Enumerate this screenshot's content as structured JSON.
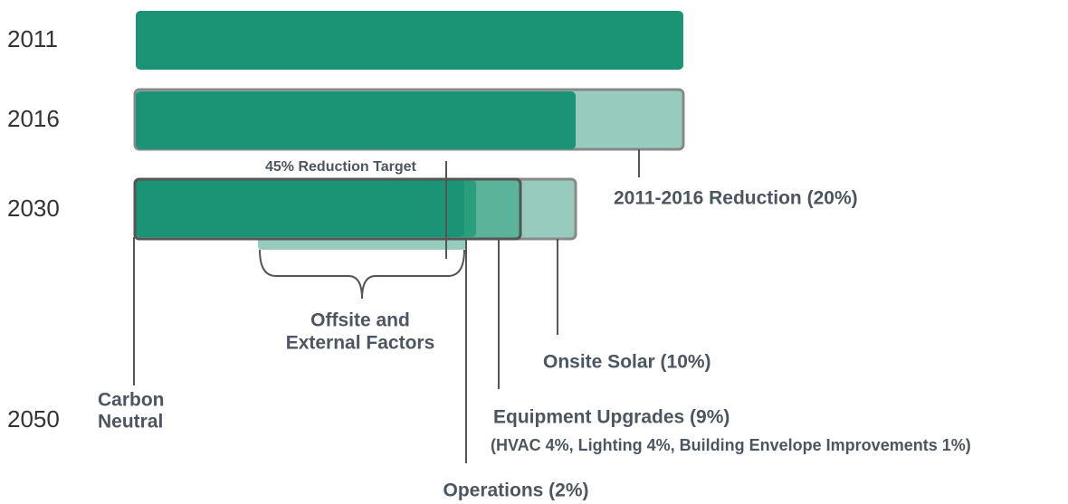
{
  "years": [
    "2011",
    "2016",
    "2030",
    "2050"
  ],
  "labels": {
    "reduction_2016": "2011-2016 Reduction (20%)",
    "target": "45% Reduction Target",
    "offsite": [
      "Offsite and",
      "External Factors"
    ],
    "carbon_neutral": [
      "Carbon",
      "Neutral"
    ],
    "onsite_solar": "Onsite Solar (10%)",
    "equipment": "Equipment Upgrades (9%)",
    "equipment_detail": "(HVAC 4%, Lighting 4%, Building Envelope Improvements 1%)",
    "operations": "Operations (2%)"
  }
}
